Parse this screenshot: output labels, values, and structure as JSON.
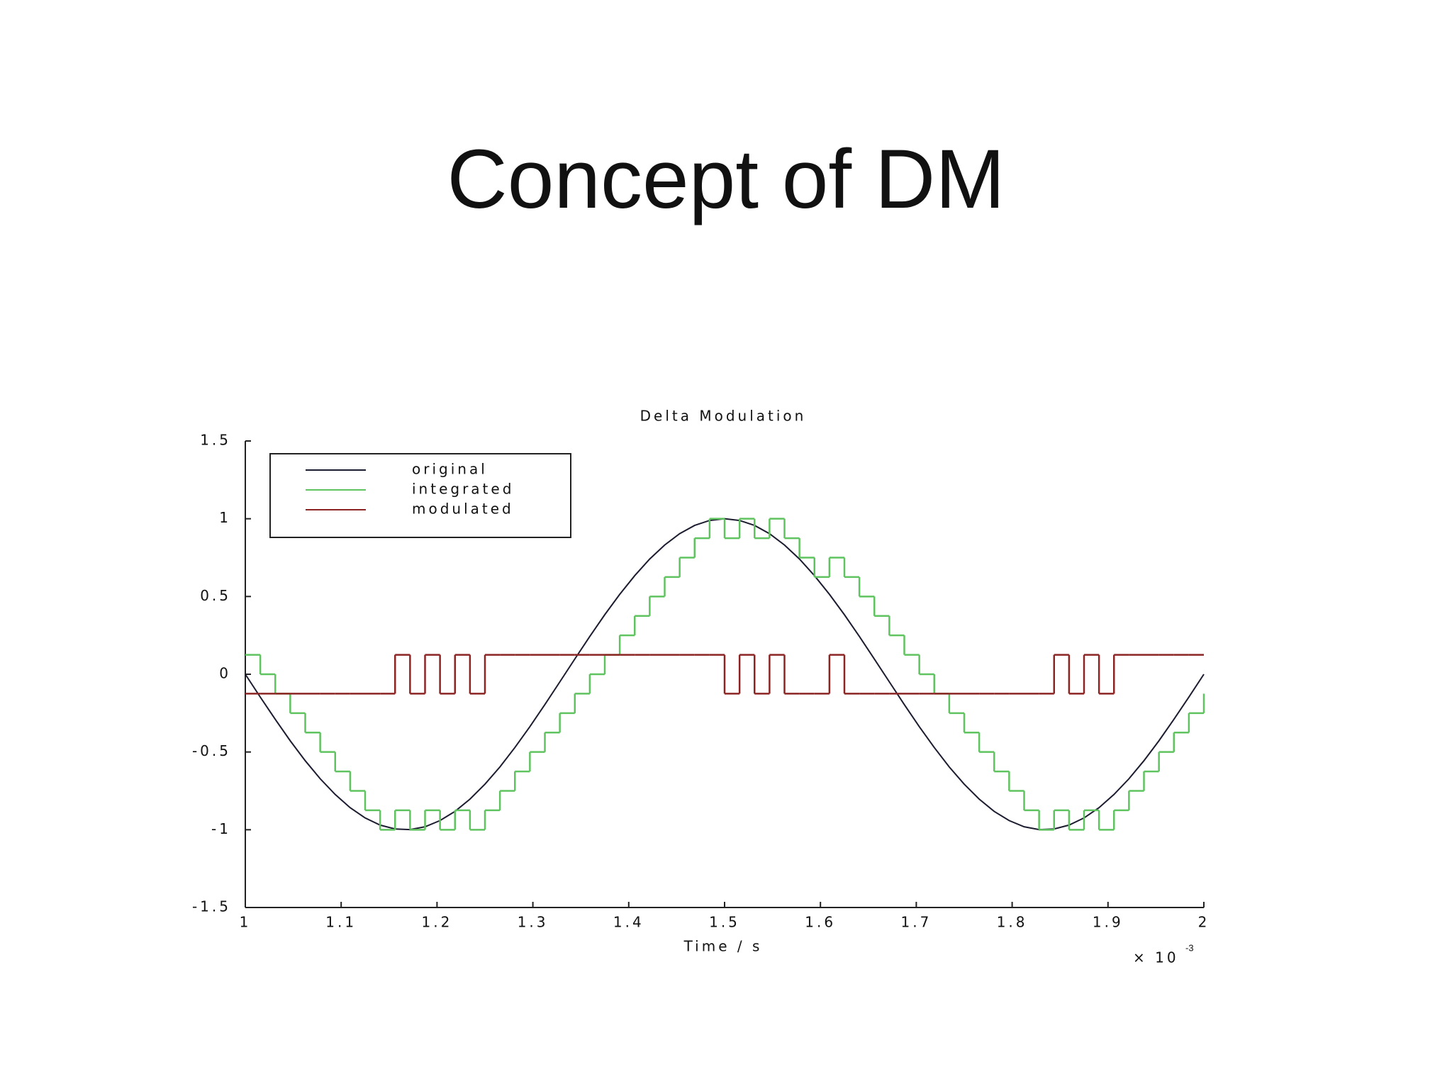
{
  "title": "Concept of DM",
  "chart_data": {
    "type": "line",
    "title": "Delta Modulation",
    "xlabel": "Time / s",
    "x_multiplier": "× 10",
    "x_exponent": "-3",
    "x": [
      1,
      1.015625,
      1.03125,
      1.046875,
      1.0625,
      1.078125,
      1.09375,
      1.109375,
      1.125,
      1.140625,
      1.15625,
      1.171875,
      1.1875,
      1.203125,
      1.21875,
      1.234375,
      1.25,
      1.265625,
      1.28125,
      1.296875,
      1.3125,
      1.328125,
      1.34375,
      1.359375,
      1.375,
      1.390625,
      1.40625,
      1.421875,
      1.4375,
      1.453125,
      1.46875,
      1.484375,
      1.5,
      1.515625,
      1.53125,
      1.546875,
      1.5625,
      1.578125,
      1.59375,
      1.609375,
      1.625,
      1.640625,
      1.65625,
      1.671875,
      1.6875,
      1.703125,
      1.71875,
      1.734375,
      1.75,
      1.765625,
      1.78125,
      1.796875,
      1.8125,
      1.828125,
      1.84375,
      1.859375,
      1.875,
      1.890625,
      1.90625,
      1.921875,
      1.9375,
      1.953125,
      1.96875,
      1.984375,
      2
    ],
    "series": [
      {
        "name": "original",
        "color": "#1c1c30",
        "drawstyle": "default",
        "values": [
          0,
          -0.147,
          -0.29,
          -0.428,
          -0.556,
          -0.672,
          -0.773,
          -0.858,
          -0.924,
          -0.97,
          -0.995,
          -0.999,
          -0.981,
          -0.941,
          -0.882,
          -0.803,
          -0.707,
          -0.596,
          -0.471,
          -0.337,
          -0.195,
          -0.049,
          0.098,
          0.243,
          0.383,
          0.514,
          0.634,
          0.741,
          0.831,
          0.904,
          0.957,
          0.989,
          1,
          0.989,
          0.957,
          0.904,
          0.831,
          0.741,
          0.634,
          0.514,
          0.383,
          0.243,
          0.098,
          -0.049,
          -0.195,
          -0.337,
          -0.471,
          -0.596,
          -0.707,
          -0.803,
          -0.882,
          -0.941,
          -0.981,
          -0.999,
          -0.995,
          -0.97,
          -0.924,
          -0.858,
          -0.773,
          -0.672,
          -0.556,
          -0.428,
          -0.29,
          -0.147,
          0
        ]
      },
      {
        "name": "integrated",
        "color": "#5fc35f",
        "drawstyle": "steps-post",
        "values": [
          0.125,
          0,
          -0.125,
          -0.25,
          -0.375,
          -0.5,
          -0.625,
          -0.75,
          -0.875,
          -1,
          -0.875,
          -1,
          -0.875,
          -1,
          -0.875,
          -1,
          -0.875,
          -0.75,
          -0.625,
          -0.5,
          -0.375,
          -0.25,
          -0.125,
          0,
          0.125,
          0.25,
          0.375,
          0.5,
          0.625,
          0.75,
          0.875,
          1,
          0.875,
          1,
          0.875,
          1,
          0.875,
          0.75,
          0.625,
          0.75,
          0.625,
          0.5,
          0.375,
          0.25,
          0.125,
          0,
          -0.125,
          -0.25,
          -0.375,
          -0.5,
          -0.625,
          -0.75,
          -0.875,
          -1,
          -0.875,
          -1,
          -0.875,
          -1,
          -0.875,
          -0.75,
          -0.625,
          -0.5,
          -0.375,
          -0.25,
          -0.125
        ]
      },
      {
        "name": "modulated",
        "color": "#8c2424",
        "drawstyle": "steps-post",
        "values": [
          -0.125,
          -0.125,
          -0.125,
          -0.125,
          -0.125,
          -0.125,
          -0.125,
          -0.125,
          -0.125,
          -0.125,
          0.125,
          -0.125,
          0.125,
          -0.125,
          0.125,
          -0.125,
          0.125,
          0.125,
          0.125,
          0.125,
          0.125,
          0.125,
          0.125,
          0.125,
          0.125,
          0.125,
          0.125,
          0.125,
          0.125,
          0.125,
          0.125,
          0.125,
          -0.125,
          0.125,
          -0.125,
          0.125,
          -0.125,
          -0.125,
          -0.125,
          0.125,
          -0.125,
          -0.125,
          -0.125,
          -0.125,
          -0.125,
          -0.125,
          -0.125,
          -0.125,
          -0.125,
          -0.125,
          -0.125,
          -0.125,
          -0.125,
          -0.125,
          0.125,
          -0.125,
          0.125,
          -0.125,
          0.125,
          0.125,
          0.125,
          0.125,
          0.125,
          0.125,
          0.125
        ]
      }
    ],
    "xlim": [
      1,
      2
    ],
    "ylim": [
      -1.5,
      1.5
    ],
    "xticks": [
      1,
      1.1,
      1.2,
      1.3,
      1.4,
      1.5,
      1.6,
      1.7,
      1.8,
      1.9,
      2
    ],
    "yticks": [
      -1.5,
      -1,
      -0.5,
      0,
      0.5,
      1,
      1.5
    ],
    "legend": "upper left",
    "grid": false
  }
}
